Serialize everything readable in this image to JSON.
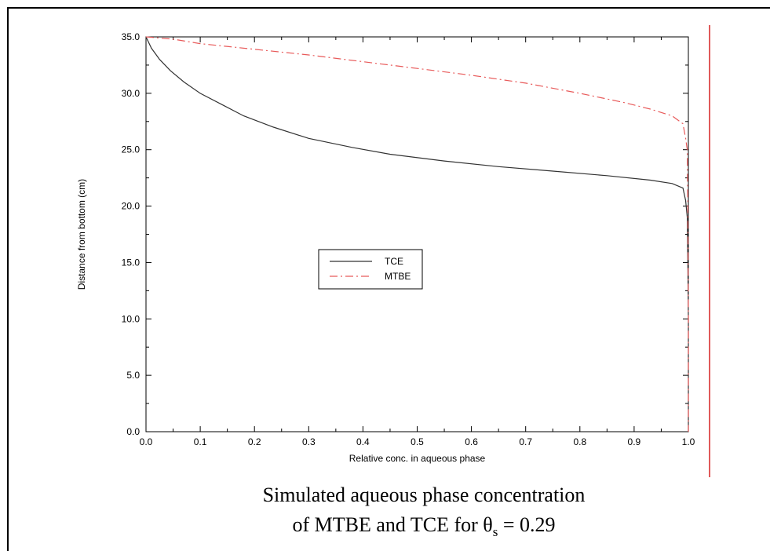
{
  "chart_data": {
    "type": "line",
    "xlabel": "Relative conc. in aqueous phase",
    "ylabel": "Distance from bottom (cm)",
    "xlim": [
      0.0,
      1.0
    ],
    "ylim": [
      0.0,
      35.0
    ],
    "x_ticks": [
      "0.0",
      "0.1",
      "0.2",
      "0.3",
      "0.4",
      "0.5",
      "0.6",
      "0.7",
      "0.8",
      "0.9",
      "1.0"
    ],
    "y_ticks": [
      "0.0",
      "5.0",
      "10.0",
      "15.0",
      "20.0",
      "25.0",
      "30.0",
      "35.0"
    ],
    "grid": false,
    "legend_position": "center-left",
    "series": [
      {
        "name": "TCE",
        "color": "#333333",
        "line_style": "solid",
        "points": [
          [
            0.0,
            35.0
          ],
          [
            0.01,
            34.0
          ],
          [
            0.025,
            33.0
          ],
          [
            0.045,
            32.0
          ],
          [
            0.07,
            31.0
          ],
          [
            0.1,
            30.0
          ],
          [
            0.14,
            29.0
          ],
          [
            0.18,
            28.0
          ],
          [
            0.235,
            27.0
          ],
          [
            0.3,
            26.0
          ],
          [
            0.38,
            25.2
          ],
          [
            0.45,
            24.6
          ],
          [
            0.55,
            24.0
          ],
          [
            0.65,
            23.5
          ],
          [
            0.75,
            23.1
          ],
          [
            0.85,
            22.7
          ],
          [
            0.93,
            22.3
          ],
          [
            0.97,
            22.0
          ],
          [
            0.99,
            21.6
          ],
          [
            0.995,
            20.5
          ],
          [
            0.998,
            19.0
          ],
          [
            0.999,
            15.0
          ],
          [
            1.0,
            10.0
          ],
          [
            1.0,
            5.0
          ],
          [
            1.0,
            0.0
          ]
        ]
      },
      {
        "name": "MTBE",
        "color": "#e85a5a",
        "line_style": "dashdot",
        "points": [
          [
            0.0,
            35.0
          ],
          [
            0.05,
            34.8
          ],
          [
            0.1,
            34.4
          ],
          [
            0.2,
            33.9
          ],
          [
            0.3,
            33.4
          ],
          [
            0.4,
            32.8
          ],
          [
            0.5,
            32.2
          ],
          [
            0.6,
            31.6
          ],
          [
            0.7,
            30.9
          ],
          [
            0.8,
            30.0
          ],
          [
            0.88,
            29.2
          ],
          [
            0.93,
            28.6
          ],
          [
            0.97,
            28.0
          ],
          [
            0.99,
            27.3
          ],
          [
            0.995,
            26.0
          ],
          [
            0.998,
            25.0
          ],
          [
            0.999,
            20.0
          ],
          [
            1.0,
            10.0
          ],
          [
            1.0,
            0.0
          ]
        ]
      }
    ]
  },
  "caption": {
    "line1": "Simulated aqueous phase concentration",
    "line2_prefix": "of MTBE and TCE for θ",
    "line2_subscript": "s",
    "line2_suffix": " = 0.29"
  }
}
